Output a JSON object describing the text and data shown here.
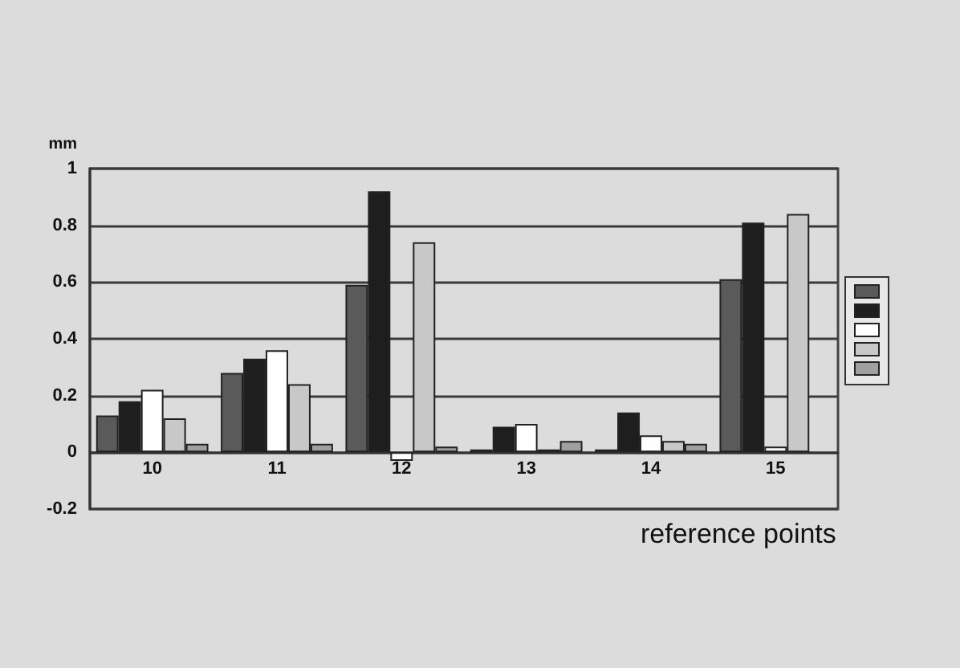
{
  "chart_data": {
    "type": "bar",
    "ylabel": "mm",
    "xlabel": "reference points",
    "categories": [
      "10",
      "11",
      "12",
      "13",
      "14",
      "15"
    ],
    "series": [
      {
        "color": "#5a5a5a",
        "values": [
          0.13,
          0.28,
          0.59,
          0.01,
          0.01,
          0.61
        ]
      },
      {
        "color": "#1e1e1e",
        "values": [
          0.18,
          0.33,
          0.92,
          0.09,
          0.14,
          0.81
        ]
      },
      {
        "color": "#ffffff",
        "values": [
          0.22,
          0.36,
          -0.03,
          0.1,
          0.06,
          0.02
        ]
      },
      {
        "color": "#c8c8c8",
        "values": [
          0.12,
          0.24,
          0.74,
          0.01,
          0.04,
          0.84
        ]
      },
      {
        "color": "#a0a0a0",
        "values": [
          0.03,
          0.03,
          0.02,
          0.04,
          0.03,
          null
        ]
      }
    ],
    "ylim": [
      -0.2,
      1
    ],
    "yticks": [
      -0.2,
      0,
      0.2,
      0.4,
      0.6,
      0.8,
      1
    ],
    "grid": "y"
  }
}
